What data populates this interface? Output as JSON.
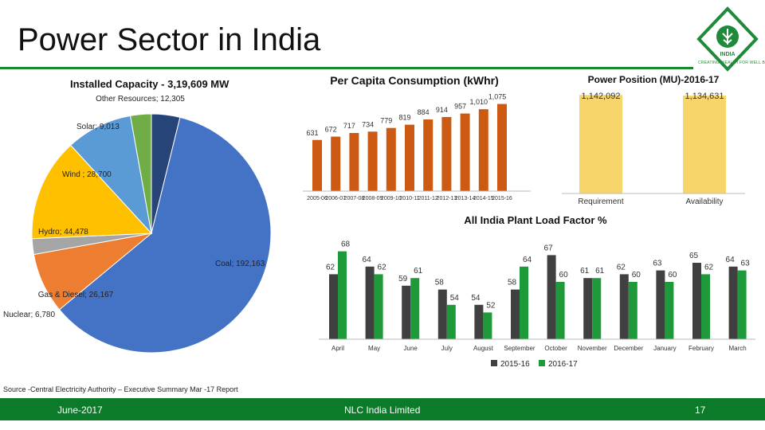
{
  "page": {
    "title": "Power Sector in India",
    "source": "Source -Central Electricity Authority – Executive Summary Mar -17 Report",
    "logo_text": "INDIA",
    "logo_tagline": "CREATING WEALTH FOR WELL BEING",
    "footer": {
      "date": "June-2017",
      "company": "NLC India Limited",
      "page_number": "17"
    }
  },
  "colors": {
    "green": "#0b7b2a",
    "orange": "#cc5a12",
    "yellow": "#f8d56a"
  },
  "chart_data": [
    {
      "type": "pie",
      "title": "Installed Capacity - 3,19,609 MW",
      "slices": [
        {
          "label": "Coal",
          "value": 192163,
          "display": "Coal; 192,163",
          "color": "#4472c4"
        },
        {
          "label": "Gas & Diesel",
          "value": 26167,
          "display": "Gas & Diesel; 26,167",
          "color": "#ed7d31"
        },
        {
          "label": "Nuclear",
          "value": 6780,
          "display": "Nuclear; 6,780",
          "color": "#a5a5a5"
        },
        {
          "label": "Hydro",
          "value": 44478,
          "display": "Hydro; 44,478",
          "color": "#ffc000"
        },
        {
          "label": "Wind",
          "value": 28700,
          "display": "Wind ; 28,700",
          "color": "#5b9bd5"
        },
        {
          "label": "Solar",
          "value": 9013,
          "display": "Solar; 9,013",
          "color": "#70ad47"
        },
        {
          "label": "Other Resources",
          "value": 12305,
          "display": "Other Resources; 12,305",
          "color": "#264478"
        }
      ]
    },
    {
      "type": "bar",
      "title": "Per Capita Consumption (kWhr)",
      "categories": [
        "2005-06",
        "2006-07",
        "2007-08",
        "2008-09",
        "2009-10",
        "2010-11",
        "2011-12",
        "2012-13",
        "2013-14",
        "2014-15",
        "2015-16"
      ],
      "values": [
        631,
        672,
        717,
        734,
        779,
        819,
        884,
        914,
        957,
        1010,
        1075
      ],
      "labels": [
        "631",
        "672",
        "717",
        "734",
        "779",
        "819",
        "884",
        "914",
        "957",
        "1,010",
        "1,075"
      ],
      "ylim": [
        0,
        1100
      ],
      "color": "#cc5a12"
    },
    {
      "type": "bar",
      "title": "Power Position (MU)-2016-17",
      "categories": [
        "Requirement",
        "Availability"
      ],
      "values": [
        1142092,
        1134631
      ],
      "labels": [
        "1,142,092",
        "1,134,631"
      ],
      "ylim": [
        0,
        1200000
      ],
      "color": "#f8d56a"
    },
    {
      "type": "bar",
      "title": "All India Plant Load Factor %",
      "categories": [
        "April",
        "May",
        "June",
        "July",
        "August",
        "September",
        "October",
        "November",
        "December",
        "January",
        "February",
        "March"
      ],
      "series": [
        {
          "name": "2015-16",
          "values": [
            62,
            64,
            59,
            58,
            54,
            58,
            67,
            61,
            62,
            63,
            65,
            64
          ],
          "color": "#404040"
        },
        {
          "name": "2016-17",
          "values": [
            68,
            62,
            61,
            54,
            52,
            64,
            60,
            61,
            60,
            60,
            62,
            63
          ],
          "color": "#1f9a3a"
        }
      ],
      "ylim": [
        45,
        70
      ],
      "legend": "bottom"
    }
  ]
}
